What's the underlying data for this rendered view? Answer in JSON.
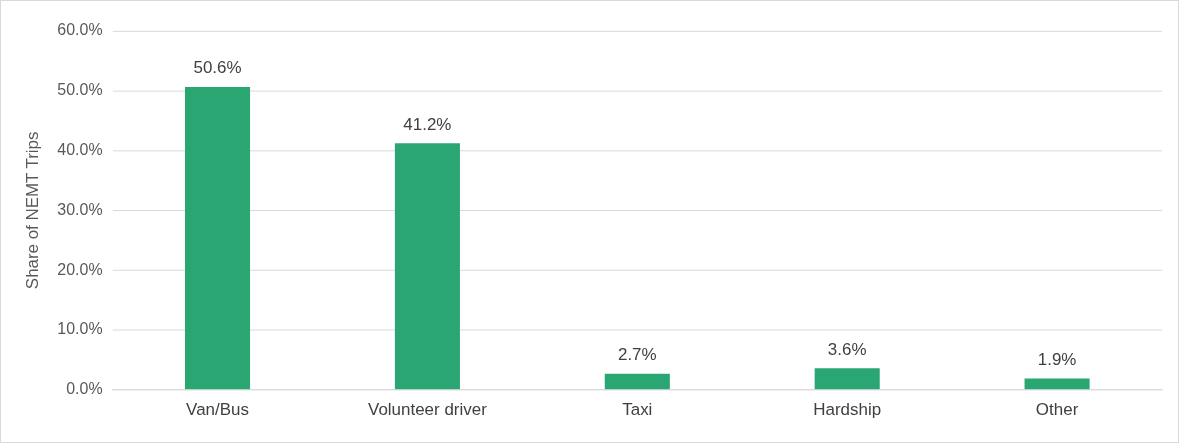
{
  "chart_data": {
    "type": "bar",
    "ylabel": "Share of NEMT Trips",
    "categories": [
      "Van/Bus",
      "Volunteer driver",
      "Taxi",
      "Hardship",
      "Other"
    ],
    "values": [
      50.6,
      41.2,
      2.7,
      3.6,
      1.9
    ],
    "value_labels": [
      "50.6%",
      "41.2%",
      "2.7%",
      "3.6%",
      "1.9%"
    ],
    "color": "#2aa673",
    "ylim": [
      0,
      60
    ],
    "yticks": [
      {
        "value": 0,
        "label": "0.0%"
      },
      {
        "value": 10,
        "label": "10.0%"
      },
      {
        "value": 20,
        "label": "20.0%"
      },
      {
        "value": 30,
        "label": "30.0%"
      },
      {
        "value": 40,
        "label": "40.0%"
      },
      {
        "value": 50,
        "label": "50.0%"
      },
      {
        "value": 60,
        "label": "60.0%"
      }
    ],
    "grid": "y",
    "legend": false
  }
}
